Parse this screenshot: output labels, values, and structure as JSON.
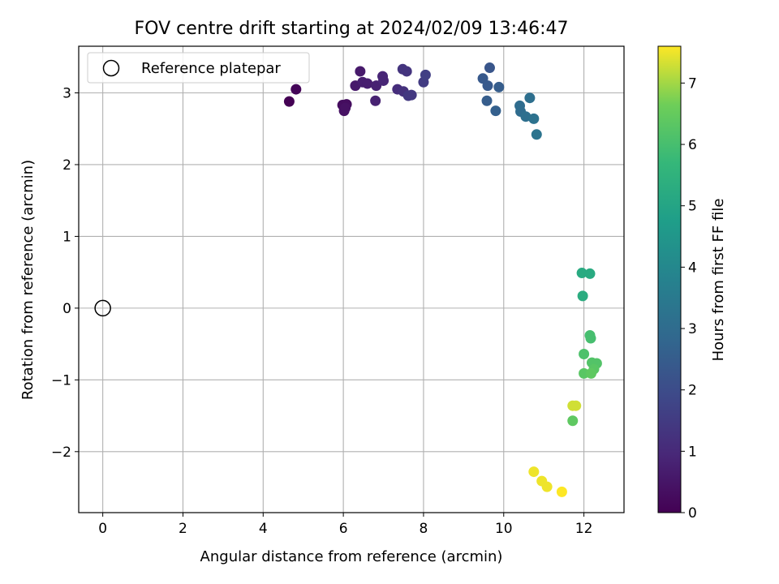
{
  "chart_data": {
    "type": "scatter",
    "title": "FOV centre drift starting at 2024/02/09 13:46:47",
    "xlabel": "Angular distance from reference (arcmin)",
    "ylabel": "Rotation from reference (arcmin)",
    "xlim": [
      -0.6,
      13.0
    ],
    "ylim": [
      -2.85,
      3.65
    ],
    "xticks": [
      "0",
      "2",
      "4",
      "6",
      "8",
      "10",
      "12"
    ],
    "yticks": [
      "−2",
      "−1",
      "0",
      "1",
      "2",
      "3"
    ],
    "grid": true,
    "legend": {
      "placement": "top-left",
      "label": "Reference platepar"
    },
    "reference_point": {
      "x": 0,
      "y": 0
    },
    "colorbar": {
      "label": "Hours from first FF file",
      "range": [
        0,
        7.6
      ],
      "ticks": [
        "0",
        "1",
        "2",
        "3",
        "4",
        "5",
        "6",
        "7"
      ],
      "colormap": "viridis"
    },
    "points": [
      {
        "x": 4.65,
        "y": 2.88,
        "t": 0.0
      },
      {
        "x": 4.82,
        "y": 3.05,
        "t": 0.1
      },
      {
        "x": 5.98,
        "y": 2.83,
        "t": 0.3
      },
      {
        "x": 6.08,
        "y": 2.84,
        "t": 0.3
      },
      {
        "x": 6.02,
        "y": 2.75,
        "t": 0.4
      },
      {
        "x": 6.05,
        "y": 2.79,
        "t": 0.4
      },
      {
        "x": 6.3,
        "y": 3.1,
        "t": 0.6
      },
      {
        "x": 6.42,
        "y": 3.3,
        "t": 0.6
      },
      {
        "x": 6.48,
        "y": 3.15,
        "t": 0.7
      },
      {
        "x": 6.6,
        "y": 3.13,
        "t": 0.7
      },
      {
        "x": 6.8,
        "y": 2.89,
        "t": 0.8
      },
      {
        "x": 6.82,
        "y": 3.1,
        "t": 0.8
      },
      {
        "x": 6.98,
        "y": 3.23,
        "t": 0.9
      },
      {
        "x": 7.0,
        "y": 3.17,
        "t": 0.9
      },
      {
        "x": 7.35,
        "y": 3.05,
        "t": 1.1
      },
      {
        "x": 7.5,
        "y": 3.02,
        "t": 1.2
      },
      {
        "x": 7.48,
        "y": 3.33,
        "t": 1.3
      },
      {
        "x": 7.58,
        "y": 3.3,
        "t": 1.3
      },
      {
        "x": 7.62,
        "y": 2.96,
        "t": 1.4
      },
      {
        "x": 7.7,
        "y": 2.97,
        "t": 1.4
      },
      {
        "x": 8.0,
        "y": 3.15,
        "t": 1.5
      },
      {
        "x": 8.05,
        "y": 3.25,
        "t": 1.6
      },
      {
        "x": 9.48,
        "y": 3.2,
        "t": 2.4
      },
      {
        "x": 9.65,
        "y": 3.35,
        "t": 2.3
      },
      {
        "x": 9.6,
        "y": 3.1,
        "t": 2.4
      },
      {
        "x": 9.88,
        "y": 3.08,
        "t": 2.5
      },
      {
        "x": 9.58,
        "y": 2.89,
        "t": 2.5
      },
      {
        "x": 9.8,
        "y": 2.75,
        "t": 2.6
      },
      {
        "x": 10.4,
        "y": 2.82,
        "t": 3.0
      },
      {
        "x": 10.42,
        "y": 2.74,
        "t": 3.0
      },
      {
        "x": 10.65,
        "y": 2.93,
        "t": 3.1
      },
      {
        "x": 10.55,
        "y": 2.67,
        "t": 3.1
      },
      {
        "x": 10.75,
        "y": 2.64,
        "t": 3.2
      },
      {
        "x": 10.82,
        "y": 2.42,
        "t": 3.3
      },
      {
        "x": 11.95,
        "y": 0.49,
        "t": 5.2
      },
      {
        "x": 12.15,
        "y": 0.48,
        "t": 5.2
      },
      {
        "x": 11.97,
        "y": 0.17,
        "t": 5.3
      },
      {
        "x": 12.15,
        "y": -0.38,
        "t": 6.0
      },
      {
        "x": 12.17,
        "y": -0.42,
        "t": 6.0
      },
      {
        "x": 12.0,
        "y": -0.64,
        "t": 6.1
      },
      {
        "x": 12.2,
        "y": -0.76,
        "t": 6.2
      },
      {
        "x": 12.32,
        "y": -0.77,
        "t": 6.2
      },
      {
        "x": 12.25,
        "y": -0.85,
        "t": 6.3
      },
      {
        "x": 12.0,
        "y": -0.91,
        "t": 6.3
      },
      {
        "x": 12.18,
        "y": -0.91,
        "t": 6.4
      },
      {
        "x": 11.72,
        "y": -1.36,
        "t": 7.3
      },
      {
        "x": 11.8,
        "y": -1.36,
        "t": 7.3
      },
      {
        "x": 11.72,
        "y": -1.57,
        "t": 6.4
      },
      {
        "x": 10.75,
        "y": -2.28,
        "t": 7.5
      },
      {
        "x": 10.95,
        "y": -2.41,
        "t": 7.5
      },
      {
        "x": 11.08,
        "y": -2.49,
        "t": 7.5
      },
      {
        "x": 11.45,
        "y": -2.56,
        "t": 7.6
      }
    ]
  }
}
